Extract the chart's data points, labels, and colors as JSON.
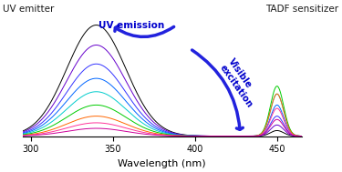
{
  "title": "",
  "xlabel": "Wavelength (nm)",
  "ylabel": "",
  "xmin": 295,
  "xmax": 465,
  "ymin": 0,
  "ymax": 1.05,
  "peak_uv": 340,
  "peak_vis": 450,
  "sigma_uv": 18,
  "sigma_vis": 4,
  "n_curves": 9,
  "curve_colors": [
    "#000000",
    "#6600cc",
    "#3333ff",
    "#0066ff",
    "#00cccc",
    "#00cc00",
    "#ff6600",
    "#ff3399",
    "#cc0099"
  ],
  "scale_factors": [
    1.0,
    0.82,
    0.65,
    0.52,
    0.4,
    0.28,
    0.18,
    0.12,
    0.07
  ],
  "vis_scale_factors": [
    0.05,
    0.1,
    0.18,
    0.28,
    0.38,
    0.45,
    0.38,
    0.25,
    0.15
  ],
  "background_color": "#ffffff",
  "uv_emitter_label": "UV emitter",
  "tadf_label": "TADF sensitizer",
  "uv_emission_label": "UV emission",
  "visible_excitation_label": "Visible\nexcitation",
  "label_color_blue": "#0000cc",
  "label_color_dark": "#1a1a1a",
  "arrow_color": "#2222dd",
  "tick_label_size": 7,
  "axis_label_size": 8
}
